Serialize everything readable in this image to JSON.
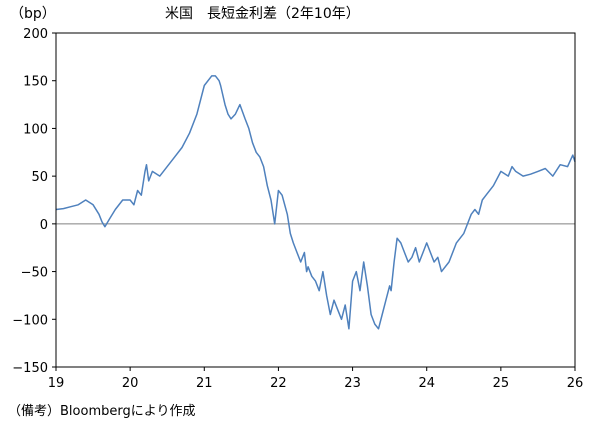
{
  "chart_data": {
    "type": "line",
    "title": "米国　長短金利差（2年10年）",
    "unit_label": "（bp）",
    "source_note": "（備考）Bloombergにより作成",
    "series_color": "#4f81bd",
    "zero_line_color": "#808080",
    "xlim": [
      19,
      26
    ],
    "ylim": [
      -150,
      200
    ],
    "x_ticks": [
      19,
      20,
      21,
      22,
      23,
      24,
      25,
      26
    ],
    "x_tick_labels": [
      "19",
      "20",
      "21",
      "22",
      "23",
      "24",
      "25",
      "26"
    ],
    "y_ticks": [
      200,
      150,
      100,
      50,
      0,
      -50,
      -100,
      -150
    ],
    "y_tick_labels": [
      "200",
      "150",
      "100",
      "50",
      "0",
      "−50",
      "−100",
      "−150"
    ],
    "series": [
      {
        "x": [
          19.0,
          19.1,
          19.2,
          19.3,
          19.4,
          19.5,
          19.58,
          19.62,
          19.66,
          19.72,
          19.8,
          19.9,
          20.0,
          20.05,
          20.1,
          20.15,
          20.2,
          20.22,
          20.25,
          20.3,
          20.4,
          20.5,
          20.6,
          20.7,
          20.8,
          20.9,
          21.0,
          21.1,
          21.15,
          21.2,
          21.22,
          21.28,
          21.32,
          21.36,
          21.42,
          21.48,
          21.55,
          21.6,
          21.65,
          21.7,
          21.75,
          21.8,
          21.85,
          21.9,
          21.95,
          22.0,
          22.05,
          22.12,
          22.16,
          22.2,
          22.25,
          22.3,
          22.35,
          22.38,
          22.4,
          22.45,
          22.5,
          22.55,
          22.6,
          22.65,
          22.7,
          22.75,
          22.8,
          22.85,
          22.9,
          22.95,
          23.0,
          23.05,
          23.1,
          23.15,
          23.18,
          23.2,
          23.25,
          23.3,
          23.35,
          23.4,
          23.45,
          23.5,
          23.52,
          23.56,
          23.6,
          23.65,
          23.7,
          23.75,
          23.8,
          23.85,
          23.9,
          23.95,
          24.0,
          24.1,
          24.15,
          24.2,
          24.3,
          24.4,
          24.5,
          24.55,
          24.6,
          24.65,
          24.7,
          24.75,
          24.8,
          24.9,
          25.0,
          25.1,
          25.15,
          25.2,
          25.3,
          25.4,
          25.5,
          25.6,
          25.7,
          25.8,
          25.9,
          25.97,
          26.0
        ],
        "y": [
          15,
          16,
          18,
          20,
          25,
          20,
          10,
          2,
          -3,
          5,
          15,
          25,
          25,
          20,
          35,
          30,
          55,
          62,
          45,
          55,
          50,
          60,
          70,
          80,
          95,
          115,
          145,
          155,
          155,
          150,
          145,
          125,
          115,
          110,
          115,
          125,
          110,
          100,
          85,
          75,
          70,
          60,
          40,
          25,
          0,
          35,
          30,
          10,
          -10,
          -20,
          -30,
          -40,
          -30,
          -50,
          -45,
          -55,
          -60,
          -70,
          -50,
          -75,
          -95,
          -80,
          -90,
          -100,
          -85,
          -110,
          -60,
          -50,
          -70,
          -40,
          -55,
          -65,
          -95,
          -105,
          -110,
          -95,
          -80,
          -65,
          -70,
          -40,
          -15,
          -20,
          -30,
          -40,
          -35,
          -25,
          -40,
          -30,
          -20,
          -40,
          -35,
          -50,
          -40,
          -20,
          -10,
          0,
          10,
          15,
          10,
          25,
          30,
          40,
          55,
          50,
          60,
          55,
          50,
          52,
          55,
          58,
          50,
          62,
          60,
          72,
          65
        ]
      }
    ]
  }
}
